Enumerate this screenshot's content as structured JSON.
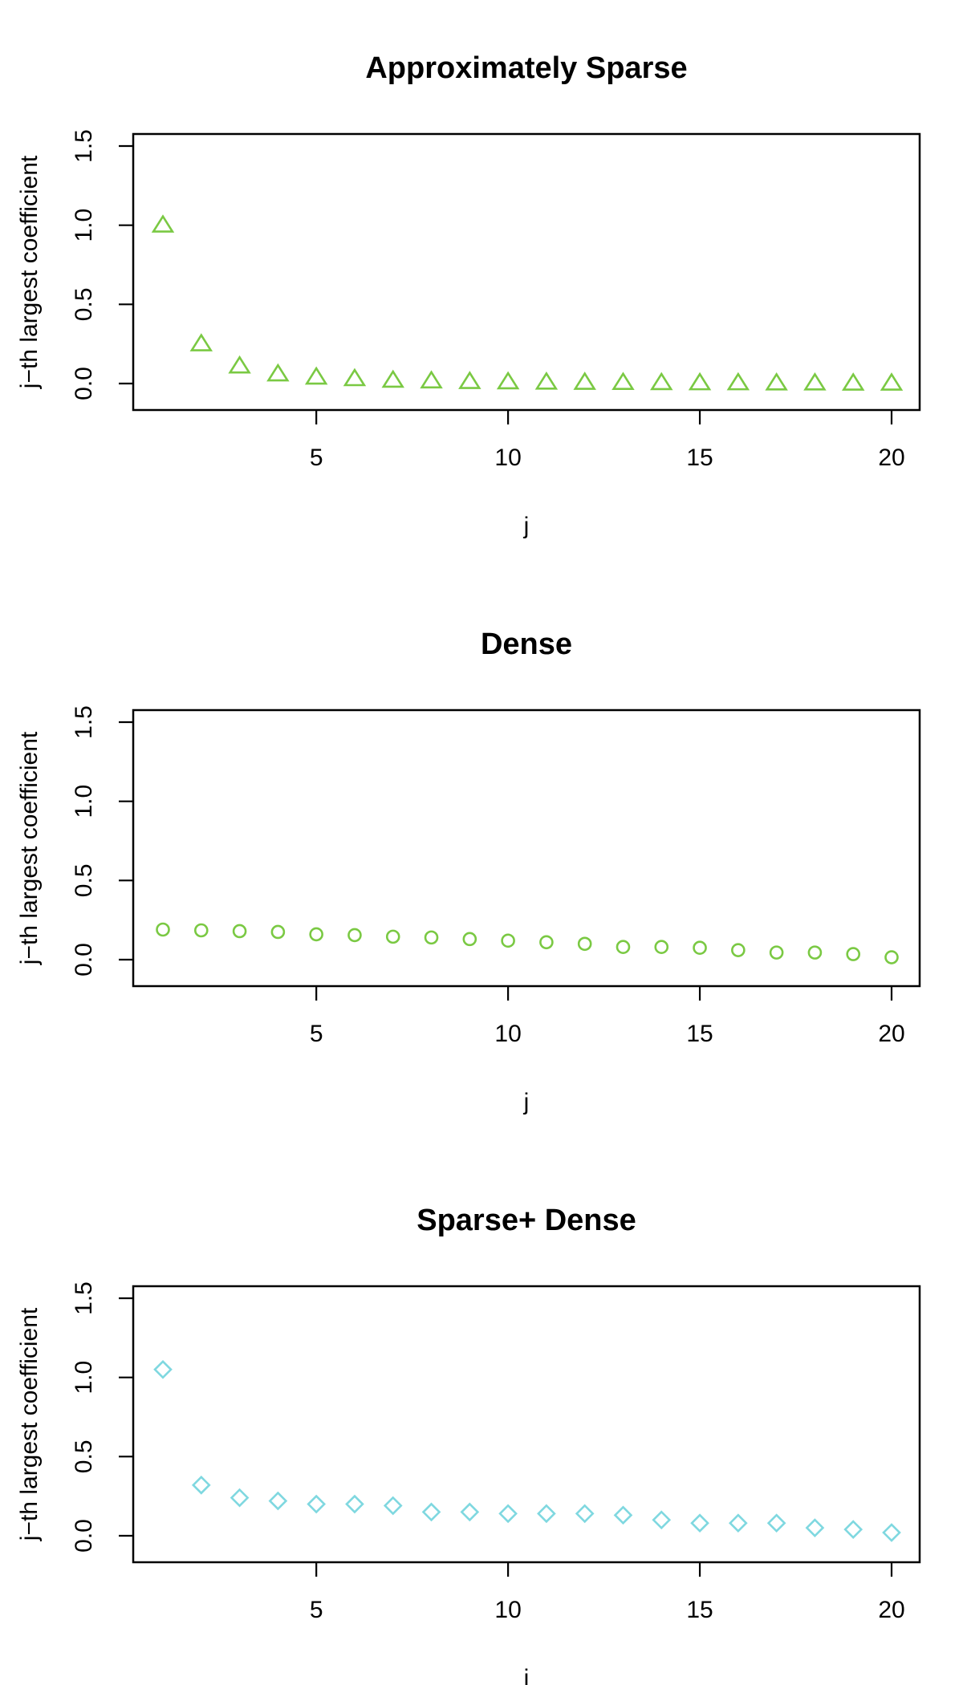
{
  "chart_data": [
    {
      "type": "scatter",
      "title": "Approximately Sparse",
      "xlabel": "j",
      "ylabel": "j−th largest coefficient",
      "x": [
        1,
        2,
        3,
        4,
        5,
        6,
        7,
        8,
        9,
        10,
        11,
        12,
        13,
        14,
        15,
        16,
        17,
        18,
        19,
        20
      ],
      "y": [
        1.0,
        0.25,
        0.11,
        0.06,
        0.04,
        0.03,
        0.02,
        0.016,
        0.012,
        0.01,
        0.008,
        0.007,
        0.006,
        0.005,
        0.004,
        0.004,
        0.003,
        0.003,
        0.002,
        0.002
      ],
      "xlim": [
        1,
        20
      ],
      "ylim": [
        0,
        1.5
      ],
      "xticks": [
        "5",
        "10",
        "15",
        "20"
      ],
      "yticks": [
        "0.0",
        "0.5",
        "1.0",
        "1.5"
      ],
      "marker": "triangle",
      "color": "#7ac943",
      "grid": false
    },
    {
      "type": "scatter",
      "title": "Dense",
      "xlabel": "j",
      "ylabel": "j−th largest coefficient",
      "x": [
        1,
        2,
        3,
        4,
        5,
        6,
        7,
        8,
        9,
        10,
        11,
        12,
        13,
        14,
        15,
        16,
        17,
        18,
        19,
        20
      ],
      "y": [
        0.19,
        0.185,
        0.18,
        0.175,
        0.16,
        0.155,
        0.145,
        0.14,
        0.13,
        0.12,
        0.11,
        0.1,
        0.08,
        0.08,
        0.075,
        0.06,
        0.045,
        0.045,
        0.035,
        0.015
      ],
      "xlim": [
        1,
        20
      ],
      "ylim": [
        0,
        1.5
      ],
      "xticks": [
        "5",
        "10",
        "15",
        "20"
      ],
      "yticks": [
        "0.0",
        "0.5",
        "1.0",
        "1.5"
      ],
      "marker": "circle",
      "color": "#7ac943",
      "grid": false
    },
    {
      "type": "scatter",
      "title": "Sparse+ Dense",
      "xlabel": "j",
      "ylabel": "j−th largest coefficient",
      "x": [
        1,
        2,
        3,
        4,
        5,
        6,
        7,
        8,
        9,
        10,
        11,
        12,
        13,
        14,
        15,
        16,
        17,
        18,
        19,
        20
      ],
      "y": [
        1.05,
        0.32,
        0.24,
        0.22,
        0.2,
        0.2,
        0.19,
        0.15,
        0.15,
        0.14,
        0.14,
        0.14,
        0.13,
        0.1,
        0.08,
        0.08,
        0.08,
        0.05,
        0.04,
        0.02
      ],
      "xlim": [
        1,
        20
      ],
      "ylim": [
        0,
        1.5
      ],
      "xticks": [
        "5",
        "10",
        "15",
        "20"
      ],
      "yticks": [
        "0.0",
        "0.5",
        "1.0",
        "1.5"
      ],
      "marker": "diamond",
      "color": "#7fd8e0",
      "grid": false
    }
  ]
}
